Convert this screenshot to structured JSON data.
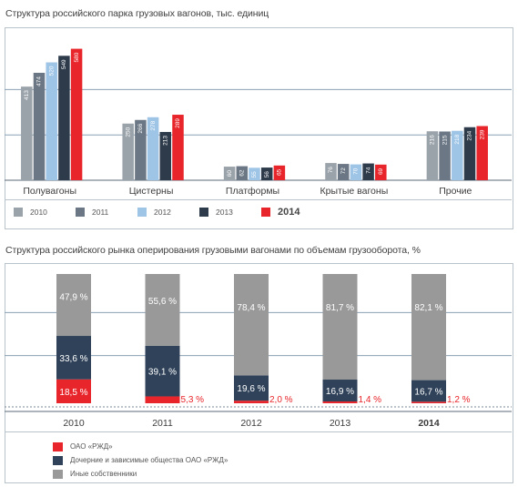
{
  "colors": {
    "y2010": "#9aa3aa",
    "y2011": "#6b7784",
    "y2012": "#9ec4e6",
    "y2013": "#2e3b4b",
    "y2014": "#e8252a",
    "rzd": "#e8252a",
    "subsidiaries": "#2f4259",
    "others": "#999999",
    "grid": "#8aa0b5"
  },
  "chart_data": [
    {
      "type": "bar",
      "title": "Структура российского парка грузовых вагонов, тыс. единиц",
      "categories": [
        "Полувагоны",
        "Цистерны",
        "Платформы",
        "Крытые вагоны",
        "Прочие"
      ],
      "series": [
        {
          "name": "2010",
          "values": [
            413,
            250,
            60,
            76,
            216
          ]
        },
        {
          "name": "2011",
          "values": [
            474,
            266,
            62,
            72,
            215
          ]
        },
        {
          "name": "2012",
          "values": [
            520,
            278,
            55,
            70,
            218
          ]
        },
        {
          "name": "2013",
          "values": [
            549,
            213,
            56,
            74,
            234
          ]
        },
        {
          "name": "2014",
          "values": [
            580,
            289,
            65,
            69,
            239
          ]
        }
      ],
      "data_labels": [
        [
          "413",
          "474",
          "520",
          "549",
          "580"
        ],
        [
          "250",
          "266",
          "278",
          "213",
          "289"
        ],
        [
          "60",
          "62",
          "55",
          "56",
          "65"
        ],
        [
          "76",
          "72",
          "70",
          "74",
          "69"
        ],
        [
          "216",
          "215",
          "218",
          "234",
          "239"
        ]
      ],
      "ylim": [
        0,
        600
      ],
      "grid": true,
      "legend_position": "bottom"
    },
    {
      "type": "bar",
      "stacked": true,
      "title": "Структура российского рынка оперирования грузовыми вагонами по объемам грузооборота, %",
      "categories": [
        "2010",
        "2011",
        "2012",
        "2013",
        "2014"
      ],
      "series": [
        {
          "name": "ОАО «РЖД»",
          "values": [
            18.5,
            5.3,
            2.0,
            1.4,
            1.2
          ],
          "labels": [
            "18,5 %",
            "5,3 %",
            "2,0 %",
            "1,4 %",
            "1,2 %"
          ]
        },
        {
          "name": "Дочерние и зависимые общества ОАО «РЖД»",
          "values": [
            33.6,
            39.1,
            19.6,
            16.9,
            16.7
          ],
          "labels": [
            "33,6 %",
            "39,1 %",
            "19,6 %",
            "16,9 %",
            "16,7 %"
          ]
        },
        {
          "name": "Иные собственники",
          "values": [
            47.9,
            55.6,
            78.4,
            81.7,
            82.1
          ],
          "labels": [
            "47,9 %",
            "55,6 %",
            "78,4 %",
            "81,7 %",
            "82,1 %"
          ]
        }
      ],
      "ylim": [
        0,
        100
      ],
      "grid": true,
      "legend_position": "bottom-left"
    }
  ],
  "legend1": {
    "items": [
      "2010",
      "2011",
      "2012",
      "2013",
      "2014"
    ]
  },
  "legend2": {
    "items": [
      "ОАО «РЖД»",
      "Дочерние и зависимые общества ОАО «РЖД»",
      "Иные собственники"
    ]
  }
}
